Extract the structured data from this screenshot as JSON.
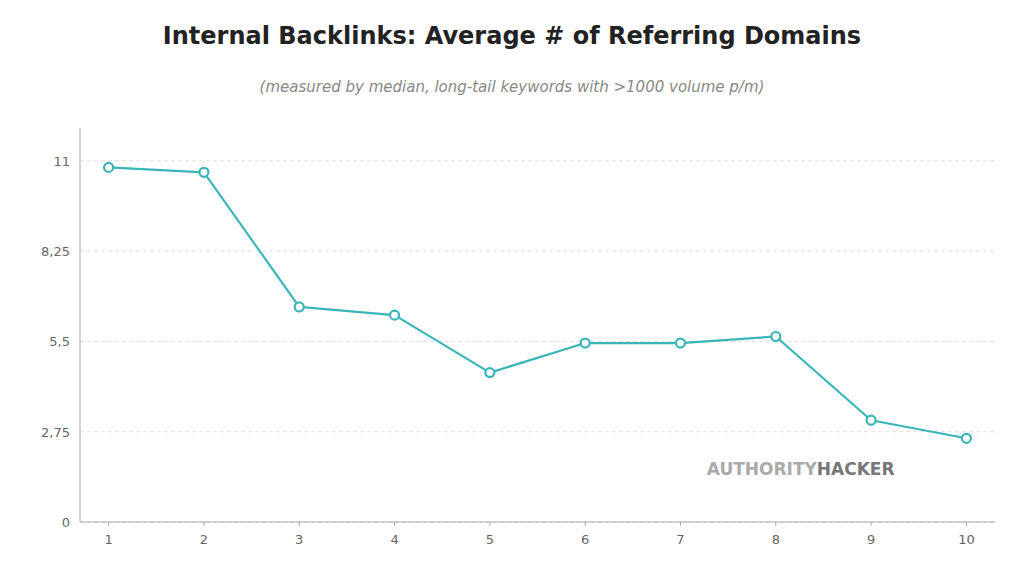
{
  "chart_data": {
    "type": "line",
    "title": "Internal Backlinks: Average # of Referring Domains",
    "subtitle": "(measured by median, long-tail keywords with >1000 volume p/m)",
    "x": [
      1,
      2,
      3,
      4,
      5,
      6,
      7,
      8,
      9,
      10
    ],
    "values": [
      10.8,
      10.65,
      6.55,
      6.3,
      4.55,
      5.45,
      5.45,
      5.65,
      3.1,
      2.55
    ],
    "color": "#3ab5b8",
    "marker": "circle",
    "xlim": [
      0.7,
      10.3
    ],
    "xticks": [
      1,
      2,
      3,
      4,
      5,
      6,
      7,
      8,
      9,
      10
    ],
    "ylim": [
      0,
      12.0
    ],
    "yticks": [
      0,
      {
        "value": 2.75,
        "label": "2,75"
      },
      {
        "value": 5.5,
        "label": "5,5"
      },
      {
        "value": 8.25,
        "label": "8,25"
      },
      11
    ],
    "grid": true,
    "annotations": [
      {
        "text": "AUTHORITY",
        "color": "#aaaaaa"
      },
      {
        "text": "HACKER",
        "color": "#777777"
      }
    ]
  }
}
